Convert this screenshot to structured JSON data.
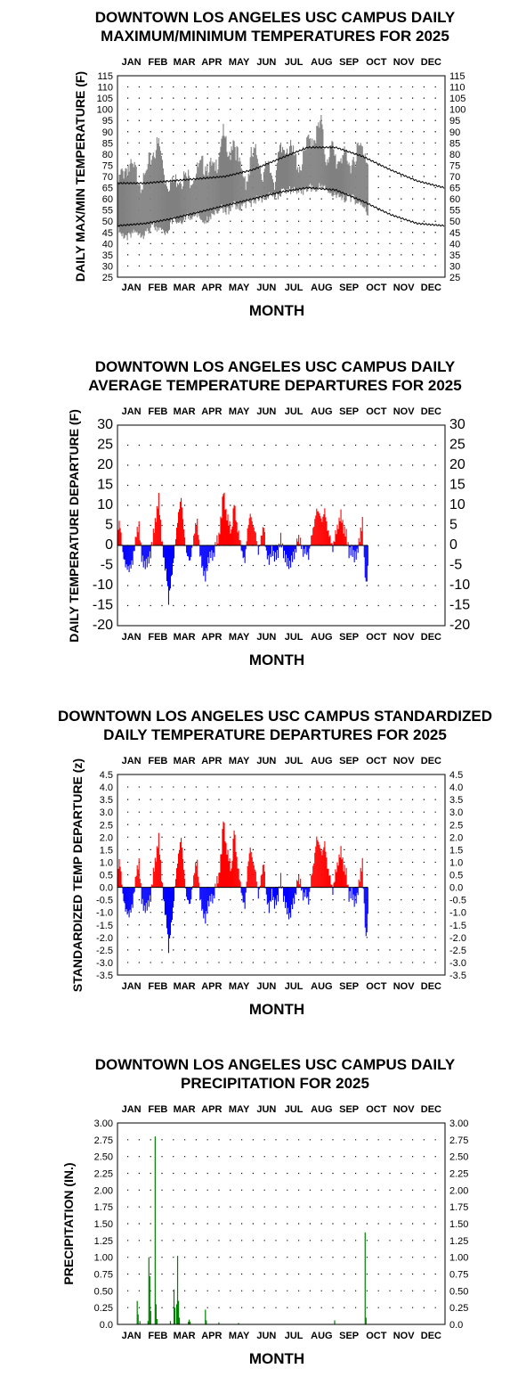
{
  "chart_data": [
    {
      "type": "area",
      "title": [
        "DOWNTOWN LOS ANGELES USC CAMPUS DAILY",
        "MAXIMUM/MINIMUM TEMPERATURES FOR 2025"
      ],
      "xlabel": "MONTH",
      "ylabel": "DAILY MAX/MIN TEMPERATURE (F)",
      "months": [
        "JAN",
        "FEB",
        "MAR",
        "APR",
        "MAY",
        "JUN",
        "JUL",
        "AUG",
        "SEP",
        "OCT",
        "NOV",
        "DEC"
      ],
      "ylim": [
        25,
        115
      ],
      "yticks": [
        "25",
        "30",
        "35",
        "40",
        "45",
        "50",
        "55",
        "60",
        "65",
        "70",
        "75",
        "80",
        "85",
        "90",
        "95",
        "100",
        "105",
        "110",
        "115"
      ],
      "grid": "dotted",
      "colors": {
        "observed_range": "#808080",
        "normals": "#000000"
      },
      "observed_through_day": 280,
      "daily_max_knots": [
        [
          1,
          68
        ],
        [
          10,
          76
        ],
        [
          20,
          74
        ],
        [
          30,
          68
        ],
        [
          40,
          82
        ],
        [
          47,
          86
        ],
        [
          55,
          70
        ],
        [
          62,
          68
        ],
        [
          70,
          72
        ],
        [
          80,
          70
        ],
        [
          90,
          74
        ],
        [
          100,
          78
        ],
        [
          110,
          73
        ],
        [
          118,
          92
        ],
        [
          125,
          78
        ],
        [
          130,
          90
        ],
        [
          138,
          74
        ],
        [
          146,
          70
        ],
        [
          150,
          80
        ],
        [
          157,
          82
        ],
        [
          163,
          72
        ],
        [
          170,
          76
        ],
        [
          176,
          70
        ],
        [
          182,
          82
        ],
        [
          190,
          86
        ],
        [
          198,
          80
        ],
        [
          205,
          76
        ],
        [
          210,
          82
        ],
        [
          215,
          88
        ],
        [
          222,
          90
        ],
        [
          228,
          95
        ],
        [
          233,
          80
        ],
        [
          240,
          84
        ],
        [
          245,
          78
        ],
        [
          252,
          82
        ],
        [
          258,
          76
        ],
        [
          264,
          80
        ],
        [
          270,
          84
        ],
        [
          276,
          83
        ],
        [
          280,
          80
        ]
      ],
      "daily_min_knots": [
        [
          1,
          48
        ],
        [
          10,
          44
        ],
        [
          20,
          48
        ],
        [
          30,
          46
        ],
        [
          40,
          50
        ],
        [
          47,
          48
        ],
        [
          55,
          46
        ],
        [
          62,
          52
        ],
        [
          70,
          52
        ],
        [
          80,
          54
        ],
        [
          90,
          55
        ],
        [
          100,
          52
        ],
        [
          110,
          57
        ],
        [
          118,
          58
        ],
        [
          125,
          56
        ],
        [
          130,
          60
        ],
        [
          138,
          58
        ],
        [
          146,
          60
        ],
        [
          150,
          60
        ],
        [
          157,
          62
        ],
        [
          163,
          62
        ],
        [
          170,
          63
        ],
        [
          176,
          63
        ],
        [
          182,
          64
        ],
        [
          190,
          66
        ],
        [
          198,
          66
        ],
        [
          205,
          65
        ],
        [
          210,
          66
        ],
        [
          215,
          67
        ],
        [
          222,
          66
        ],
        [
          228,
          68
        ],
        [
          233,
          67
        ],
        [
          240,
          64
        ],
        [
          245,
          63
        ],
        [
          252,
          62
        ],
        [
          258,
          63
        ],
        [
          264,
          62
        ],
        [
          270,
          60
        ],
        [
          276,
          58
        ],
        [
          280,
          55
        ]
      ],
      "normal_high_knots": [
        [
          1,
          67
        ],
        [
          32,
          67
        ],
        [
          60,
          68
        ],
        [
          91,
          69
        ],
        [
          121,
          70
        ],
        [
          152,
          73
        ],
        [
          182,
          78
        ],
        [
          213,
          83
        ],
        [
          244,
          83
        ],
        [
          274,
          79
        ],
        [
          305,
          73
        ],
        [
          335,
          68
        ],
        [
          365,
          65
        ]
      ],
      "normal_low_knots": [
        [
          1,
          48
        ],
        [
          32,
          49
        ],
        [
          60,
          51
        ],
        [
          91,
          54
        ],
        [
          121,
          57
        ],
        [
          152,
          60
        ],
        [
          182,
          63
        ],
        [
          213,
          65
        ],
        [
          244,
          64
        ],
        [
          274,
          59
        ],
        [
          305,
          53
        ],
        [
          335,
          49
        ],
        [
          365,
          48
        ]
      ]
    },
    {
      "type": "bar",
      "title": [
        "DOWNTOWN LOS ANGELES USC CAMPUS DAILY",
        "AVERAGE TEMPERATURE DEPARTURES FOR 2025"
      ],
      "xlabel": "MONTH",
      "ylabel": "DAILY TEMPERATURE DEPARTURE (F)",
      "months": [
        "JAN",
        "FEB",
        "MAR",
        "APR",
        "MAY",
        "JUN",
        "JUL",
        "AUG",
        "SEP",
        "OCT",
        "NOV",
        "DEC"
      ],
      "ylim": [
        -20,
        30
      ],
      "yticks": [
        "-20",
        "-15",
        "-10",
        "-5",
        "0",
        "5",
        "10",
        "15",
        "20",
        "25",
        "30"
      ],
      "grid": "dotted",
      "colors": {
        "positive": "#ff0000",
        "negative": "#0000ff"
      },
      "observed_through_day": 280,
      "departure_knots": [
        [
          1,
          2
        ],
        [
          3,
          6
        ],
        [
          5,
          3
        ],
        [
          7,
          -2
        ],
        [
          10,
          -5
        ],
        [
          14,
          -6
        ],
        [
          18,
          -4
        ],
        [
          22,
          3
        ],
        [
          25,
          5
        ],
        [
          28,
          -3
        ],
        [
          31,
          -5
        ],
        [
          35,
          -4
        ],
        [
          38,
          -2
        ],
        [
          41,
          3
        ],
        [
          44,
          7
        ],
        [
          47,
          12
        ],
        [
          50,
          2
        ],
        [
          53,
          -4
        ],
        [
          56,
          -8
        ],
        [
          58,
          -14
        ],
        [
          60,
          -10
        ],
        [
          63,
          -5
        ],
        [
          66,
          2
        ],
        [
          69,
          8
        ],
        [
          72,
          12
        ],
        [
          75,
          4
        ],
        [
          78,
          -2
        ],
        [
          82,
          -4
        ],
        [
          86,
          2
        ],
        [
          88,
          5
        ],
        [
          90,
          6
        ],
        [
          93,
          -2
        ],
        [
          96,
          -6
        ],
        [
          99,
          -8
        ],
        [
          102,
          -4
        ],
        [
          105,
          -2
        ],
        [
          108,
          -3
        ],
        [
          111,
          1
        ],
        [
          114,
          2
        ],
        [
          117,
          8
        ],
        [
          119,
          14
        ],
        [
          122,
          8
        ],
        [
          125,
          6
        ],
        [
          128,
          3
        ],
        [
          131,
          11
        ],
        [
          134,
          5
        ],
        [
          137,
          2
        ],
        [
          140,
          -2
        ],
        [
          143,
          -4
        ],
        [
          146,
          4
        ],
        [
          149,
          8
        ],
        [
          152,
          5
        ],
        [
          155,
          3
        ],
        [
          158,
          -2
        ],
        [
          161,
          2
        ],
        [
          164,
          5
        ],
        [
          167,
          -2
        ],
        [
          170,
          -4
        ],
        [
          173,
          -1
        ],
        [
          176,
          -3
        ],
        [
          180,
          -2
        ],
        [
          183,
          2
        ],
        [
          186,
          -2
        ],
        [
          190,
          -4
        ],
        [
          193,
          -5
        ],
        [
          196,
          -3
        ],
        [
          199,
          -2
        ],
        [
          202,
          2
        ],
        [
          205,
          1
        ],
        [
          208,
          -2
        ],
        [
          211,
          -1
        ],
        [
          214,
          -3
        ],
        [
          217,
          2
        ],
        [
          220,
          5
        ],
        [
          223,
          9
        ],
        [
          226,
          8
        ],
        [
          229,
          6
        ],
        [
          232,
          9
        ],
        [
          235,
          4
        ],
        [
          238,
          2
        ],
        [
          241,
          -1
        ],
        [
          244,
          3
        ],
        [
          247,
          5
        ],
        [
          250,
          8
        ],
        [
          253,
          4
        ],
        [
          256,
          3
        ],
        [
          259,
          -2
        ],
        [
          262,
          -1
        ],
        [
          265,
          -3
        ],
        [
          268,
          -2
        ],
        [
          271,
          2
        ],
        [
          274,
          6
        ],
        [
          276,
          -4
        ],
        [
          278,
          -10
        ],
        [
          280,
          -6
        ]
      ]
    },
    {
      "type": "bar",
      "title": [
        "DOWNTOWN LOS ANGELES USC CAMPUS STANDARDIZED",
        "DAILY TEMPERATURE DEPARTURES FOR 2025"
      ],
      "xlabel": "MONTH",
      "ylabel": "STANDARDIZED TEMP DEPARTURE (z)",
      "months": [
        "JAN",
        "FEB",
        "MAR",
        "APR",
        "MAY",
        "JUN",
        "JUL",
        "AUG",
        "SEP",
        "OCT",
        "NOV",
        "DEC"
      ],
      "ylim": [
        -3.5,
        4.5
      ],
      "yticks": [
        "-3.5",
        "-3.0",
        "-2.5",
        "-2.0",
        "-1.5",
        "-1.0",
        "-0.5",
        "0.0",
        "0.5",
        "1.0",
        "1.5",
        "2.0",
        "2.5",
        "3.0",
        "3.5",
        "4.0",
        "4.5"
      ],
      "grid": "dotted",
      "colors": {
        "positive": "#ff0000",
        "negative": "#0000ff"
      },
      "observed_through_day": 280,
      "departure_knots": [
        [
          1,
          0.4
        ],
        [
          3,
          1.1
        ],
        [
          5,
          0.6
        ],
        [
          7,
          -0.3
        ],
        [
          10,
          -0.9
        ],
        [
          14,
          -1.1
        ],
        [
          18,
          -0.7
        ],
        [
          22,
          0.6
        ],
        [
          25,
          1.0
        ],
        [
          28,
          -0.5
        ],
        [
          31,
          -0.9
        ],
        [
          35,
          -0.7
        ],
        [
          38,
          -0.4
        ],
        [
          41,
          0.6
        ],
        [
          44,
          1.2
        ],
        [
          47,
          2.0
        ],
        [
          50,
          0.4
        ],
        [
          53,
          -0.7
        ],
        [
          56,
          -1.5
        ],
        [
          58,
          -2.5
        ],
        [
          60,
          -1.8
        ],
        [
          63,
          -0.9
        ],
        [
          66,
          0.4
        ],
        [
          69,
          1.3
        ],
        [
          72,
          2.0
        ],
        [
          75,
          0.7
        ],
        [
          78,
          -0.4
        ],
        [
          82,
          -0.7
        ],
        [
          86,
          0.4
        ],
        [
          88,
          0.9
        ],
        [
          90,
          1.0
        ],
        [
          93,
          -0.4
        ],
        [
          96,
          -1.0
        ],
        [
          99,
          -1.3
        ],
        [
          102,
          -0.7
        ],
        [
          105,
          -0.4
        ],
        [
          108,
          -0.5
        ],
        [
          111,
          0.2
        ],
        [
          114,
          0.4
        ],
        [
          117,
          1.5
        ],
        [
          119,
          2.8
        ],
        [
          122,
          1.6
        ],
        [
          125,
          1.2
        ],
        [
          128,
          0.6
        ],
        [
          131,
          2.4
        ],
        [
          134,
          1.1
        ],
        [
          137,
          0.4
        ],
        [
          140,
          -0.4
        ],
        [
          143,
          -0.8
        ],
        [
          146,
          0.8
        ],
        [
          149,
          1.6
        ],
        [
          152,
          1.0
        ],
        [
          155,
          0.6
        ],
        [
          158,
          -0.4
        ],
        [
          161,
          0.4
        ],
        [
          164,
          1.0
        ],
        [
          167,
          -0.4
        ],
        [
          170,
          -0.9
        ],
        [
          173,
          -0.2
        ],
        [
          176,
          -0.7
        ],
        [
          180,
          -0.4
        ],
        [
          183,
          0.4
        ],
        [
          186,
          -0.4
        ],
        [
          190,
          -0.9
        ],
        [
          193,
          -1.2
        ],
        [
          196,
          -0.7
        ],
        [
          199,
          -0.4
        ],
        [
          202,
          0.4
        ],
        [
          205,
          0.2
        ],
        [
          208,
          -0.4
        ],
        [
          211,
          -0.2
        ],
        [
          214,
          -0.6
        ],
        [
          217,
          0.4
        ],
        [
          220,
          1.0
        ],
        [
          223,
          2.0
        ],
        [
          226,
          1.7
        ],
        [
          229,
          1.3
        ],
        [
          232,
          1.8
        ],
        [
          235,
          0.8
        ],
        [
          238,
          0.4
        ],
        [
          241,
          -0.2
        ],
        [
          244,
          0.6
        ],
        [
          247,
          1.0
        ],
        [
          250,
          1.5
        ],
        [
          253,
          0.8
        ],
        [
          256,
          0.6
        ],
        [
          259,
          -0.4
        ],
        [
          262,
          -0.2
        ],
        [
          265,
          -0.6
        ],
        [
          268,
          -0.4
        ],
        [
          271,
          0.4
        ],
        [
          274,
          1.0
        ],
        [
          276,
          -0.8
        ],
        [
          278,
          -2.1
        ],
        [
          280,
          -1.2
        ]
      ]
    },
    {
      "type": "bar",
      "title": [
        "DOWNTOWN LOS ANGELES USC CAMPUS DAILY",
        "PRECIPITATION FOR 2025"
      ],
      "xlabel": "MONTH",
      "ylabel": "PRECIPITATION (IN.)",
      "months": [
        "JAN",
        "FEB",
        "MAR",
        "APR",
        "MAY",
        "JUN",
        "JUL",
        "AUG",
        "SEP",
        "OCT",
        "NOV",
        "DEC"
      ],
      "ylim": [
        0,
        3.0
      ],
      "yticks": [
        "0.0",
        "0.25",
        "0.50",
        "0.75",
        "1.00",
        "1.25",
        "1.50",
        "1.75",
        "2.00",
        "2.25",
        "2.50",
        "2.75",
        "3.00"
      ],
      "grid": "dotted",
      "colors": {
        "precip": "#008000"
      },
      "daily_precip": [
        [
          23,
          0.35
        ],
        [
          24,
          0.15
        ],
        [
          26,
          0.05
        ],
        [
          35,
          0.05
        ],
        [
          36,
          1.0
        ],
        [
          37,
          0.72
        ],
        [
          38,
          0.2
        ],
        [
          43,
          2.8
        ],
        [
          44,
          0.3
        ],
        [
          45,
          0.08
        ],
        [
          60,
          0.05
        ],
        [
          64,
          0.52
        ],
        [
          65,
          0.25
        ],
        [
          67,
          0.3
        ],
        [
          68,
          1.02
        ],
        [
          69,
          0.35
        ],
        [
          70,
          0.1
        ],
        [
          80,
          0.04
        ],
        [
          81,
          0.07
        ],
        [
          82,
          0.04
        ],
        [
          99,
          0.22
        ],
        [
          100,
          0.06
        ],
        [
          114,
          0.03
        ],
        [
          136,
          0.02
        ],
        [
          243,
          0.06
        ],
        [
          277,
          1.37
        ],
        [
          278,
          0.1
        ]
      ]
    }
  ]
}
